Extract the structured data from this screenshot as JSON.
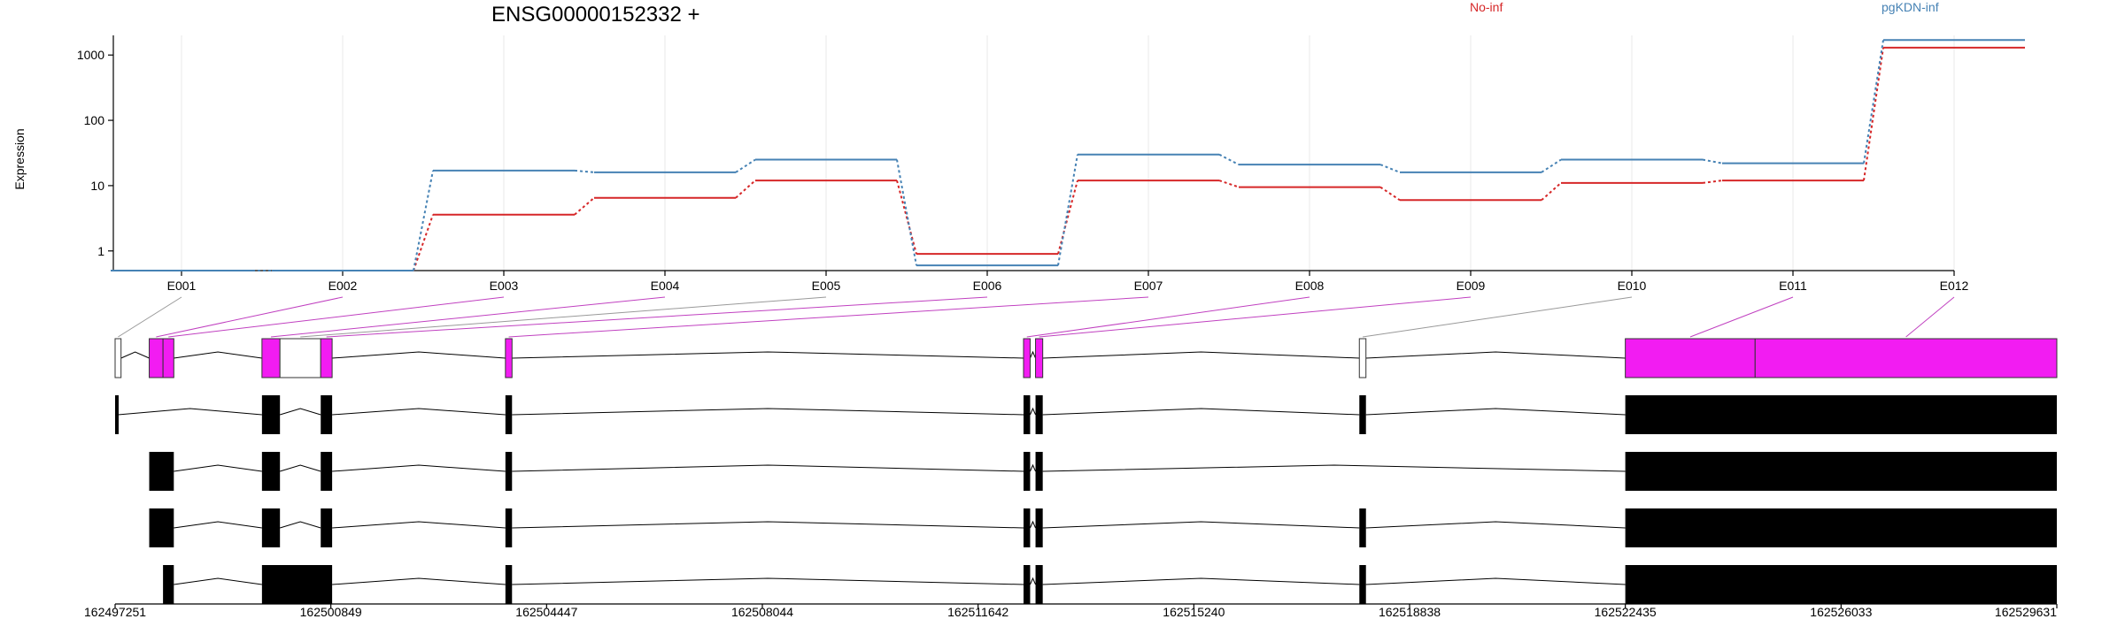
{
  "chart_data": {
    "type": "line",
    "title": "ENSG00000152332 +",
    "ylabel": "Expression",
    "xlabel": "",
    "y_scale": "log",
    "ylim": [
      0.5,
      2000
    ],
    "y_ticks": [
      1,
      10,
      100,
      1000
    ],
    "grid": "vertical",
    "legend_position": "top-right",
    "categories": [
      "E001",
      "E002",
      "E003",
      "E004",
      "E005",
      "E006",
      "E007",
      "E008",
      "E009",
      "E010",
      "E011",
      "E012"
    ],
    "series": [
      {
        "name": "No-inf",
        "color": "#d62728",
        "values": [
          0.5,
          0.5,
          3.6,
          6.5,
          12,
          0.9,
          12,
          9.5,
          6,
          11,
          12,
          1300
        ]
      },
      {
        "name": "pgKDN-inf",
        "color": "#4682b4",
        "values": [
          0.5,
          0.5,
          17,
          16,
          25,
          0.6,
          30,
          21,
          16,
          25,
          22,
          1700
        ]
      }
    ],
    "gene_model": {
      "exon_highlight_color": "#f21cf2",
      "tracks": 5,
      "genomic_ticks": [
        "162497251",
        "162500849",
        "162504447",
        "162508044",
        "162511642",
        "162515240",
        "162518838",
        "162522435",
        "162526033",
        "162529631"
      ],
      "genomic_range": [
        162497251,
        162529631
      ],
      "exons": [
        {
          "id": "E001",
          "start": 162497251,
          "end": 162497350,
          "significant": false
        },
        {
          "id": "E002",
          "start": 162497820,
          "end": 162498050,
          "significant": true
        },
        {
          "id": "E003",
          "start": 162498050,
          "end": 162498230,
          "significant": true
        },
        {
          "id": "E004",
          "start": 162499700,
          "end": 162500000,
          "significant": true
        },
        {
          "id": "E005",
          "start": 162500000,
          "end": 162500680,
          "significant": false
        },
        {
          "id": "E006",
          "start": 162500680,
          "end": 162500870,
          "significant": true
        },
        {
          "id": "E007",
          "start": 162503760,
          "end": 162503870,
          "significant": true
        },
        {
          "id": "E008",
          "start": 162512400,
          "end": 162512510,
          "significant": true
        },
        {
          "id": "E009",
          "start": 162512600,
          "end": 162512720,
          "significant": true
        },
        {
          "id": "E010",
          "start": 162518000,
          "end": 162518110,
          "significant": false
        },
        {
          "id": "E011",
          "start": 162522435,
          "end": 162524600,
          "significant": true
        },
        {
          "id": "E012",
          "start": 162524600,
          "end": 162529631,
          "significant": true
        }
      ],
      "transcripts": [
        [
          [
            162497251,
            162497300
          ],
          [
            162499700,
            162500000
          ],
          [
            162500680,
            162500870
          ],
          [
            162503760,
            162503870
          ],
          [
            162512400,
            162512510
          ],
          [
            162512600,
            162512720
          ],
          [
            162518000,
            162518110
          ],
          [
            162522435,
            162529631
          ]
        ],
        [
          [
            162497820,
            162498230
          ],
          [
            162499700,
            162500000
          ],
          [
            162500680,
            162500870
          ],
          [
            162503760,
            162503870
          ],
          [
            162512400,
            162512510
          ],
          [
            162512600,
            162512720
          ],
          [
            162522435,
            162529631
          ]
        ],
        [
          [
            162497820,
            162498230
          ],
          [
            162499700,
            162500000
          ],
          [
            162500680,
            162500870
          ],
          [
            162503760,
            162503870
          ],
          [
            162512400,
            162512510
          ],
          [
            162512600,
            162512720
          ],
          [
            162518000,
            162518110
          ],
          [
            162522435,
            162529631
          ]
        ],
        [
          [
            162498050,
            162498230
          ],
          [
            162499700,
            162500870
          ],
          [
            162503760,
            162503870
          ],
          [
            162512400,
            162512510
          ],
          [
            162512600,
            162512720
          ],
          [
            162518000,
            162518110
          ],
          [
            162522435,
            162529631
          ]
        ]
      ]
    }
  }
}
